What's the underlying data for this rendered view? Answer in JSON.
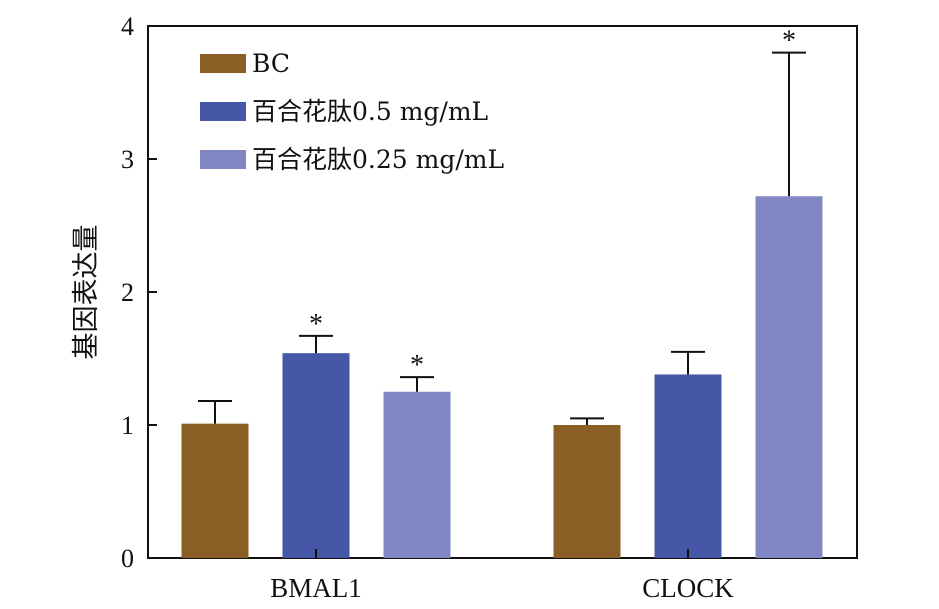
{
  "chart_data": {
    "type": "bar",
    "title": "",
    "xlabel": "",
    "ylabel": "基因表达量",
    "ylim": [
      0,
      4
    ],
    "yticks": [
      0,
      1,
      2,
      3,
      4
    ],
    "grid": false,
    "legend_position": "top-left",
    "categories": [
      "BMAL1",
      "CLOCK"
    ],
    "series": [
      {
        "name": "BC",
        "color": "#8B5E26",
        "values": [
          1.01,
          1.0
        ],
        "errors": [
          0.17,
          0.05
        ],
        "significance": [
          "",
          ""
        ]
      },
      {
        "name": "百合花肽0.5 mg/mL",
        "color": "#4557A6",
        "values": [
          1.54,
          1.38
        ],
        "errors": [
          0.13,
          0.17
        ],
        "significance": [
          "*",
          ""
        ]
      },
      {
        "name": "百合花肽0.25 mg/mL",
        "color": "#8087C3",
        "values": [
          1.25,
          2.72
        ],
        "errors": [
          0.11,
          1.08
        ],
        "significance": [
          "*",
          "*"
        ]
      }
    ]
  }
}
